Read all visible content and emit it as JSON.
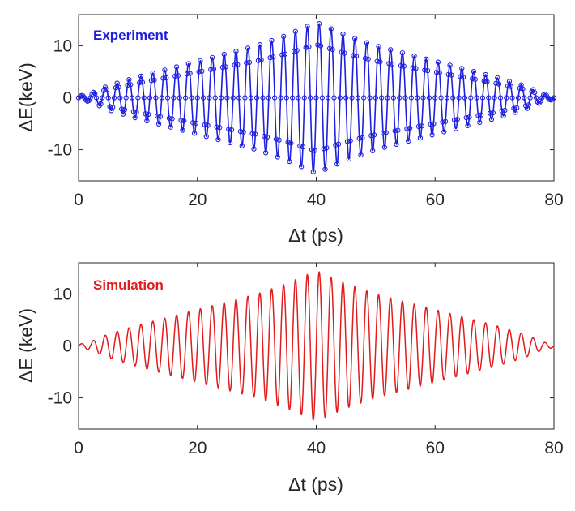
{
  "chart_data": [
    {
      "type": "line",
      "title": "",
      "legend_text": "Experiment",
      "legend_placement": "top-left",
      "color": "#1f1fe0",
      "markers": "open-circle",
      "xlabel": "Δt (ps)",
      "ylabel": "ΔE(keV)",
      "xlim": [
        0,
        80
      ],
      "ylim": [
        -16,
        16
      ],
      "xticks": [
        0,
        20,
        40,
        60,
        80
      ],
      "yticks": [
        -10,
        0,
        10
      ],
      "grid": false,
      "signal": {
        "form": "amplitude × sin(2π × frequency × (Δt − 40))",
        "frequency_per_ps": 0.5,
        "amplitude_points": {
          "t": [
            0,
            2,
            5,
            10,
            15,
            20,
            25,
            30,
            35,
            40,
            45,
            50,
            55,
            60,
            65,
            70,
            75,
            78,
            80
          ],
          "amplitude": [
            0.3,
            0.8,
            2.3,
            4.0,
            5.5,
            7.0,
            8.5,
            10.0,
            12.0,
            14.5,
            12.0,
            10.0,
            8.5,
            7.0,
            5.5,
            4.0,
            2.3,
            0.8,
            0.3
          ]
        }
      }
    },
    {
      "type": "line",
      "title": "",
      "legend_text": "Simulation",
      "legend_placement": "top-left",
      "color": "#e21b1b",
      "markers": "none",
      "xlabel": "Δt (ps)",
      "ylabel": "ΔE (keV)",
      "xlim": [
        0,
        80
      ],
      "ylim": [
        -16,
        16
      ],
      "xticks": [
        0,
        20,
        40,
        60,
        80
      ],
      "yticks": [
        -10,
        0,
        10
      ],
      "grid": false,
      "signal": {
        "form": "amplitude × sin(2π × frequency × (Δt − 40))",
        "frequency_per_ps": 0.5,
        "amplitude_points": {
          "t": [
            0,
            2,
            5,
            10,
            15,
            20,
            25,
            30,
            35,
            40,
            45,
            50,
            55,
            60,
            65,
            70,
            75,
            78,
            80
          ],
          "amplitude": [
            0.3,
            0.8,
            2.3,
            4.0,
            5.5,
            7.0,
            8.5,
            10.0,
            12.0,
            14.5,
            12.0,
            10.0,
            8.5,
            7.0,
            5.5,
            4.0,
            2.3,
            0.8,
            0.3
          ]
        }
      }
    }
  ]
}
